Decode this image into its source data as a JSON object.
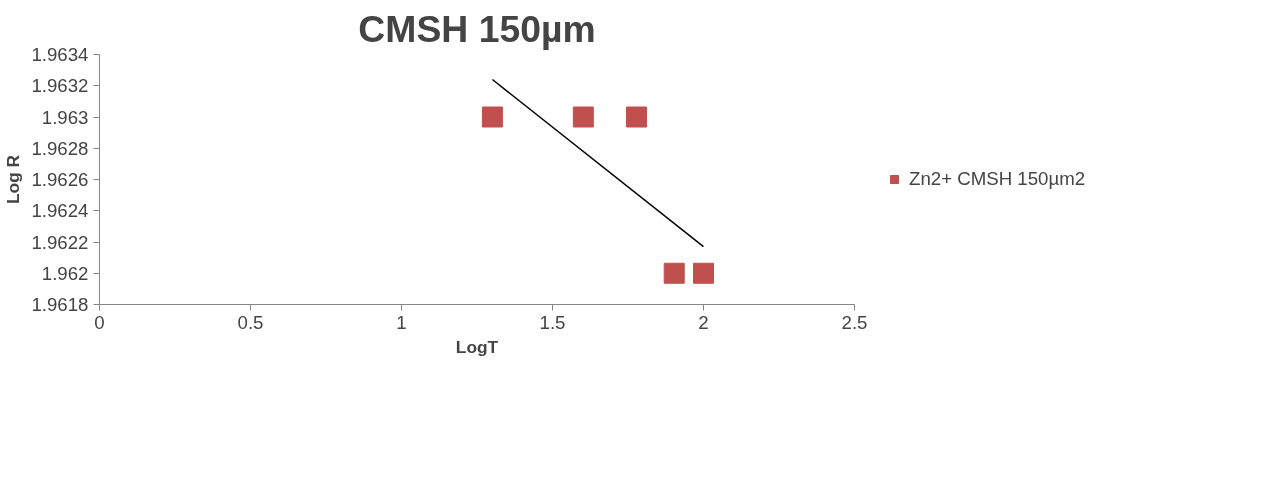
{
  "chart_data": {
    "type": "scatter",
    "title": "CMSH 150µm",
    "xlabel": "LogT",
    "ylabel": "Log R",
    "xlim": [
      0,
      2.5
    ],
    "xticks": [
      0,
      0.5,
      1,
      1.5,
      2,
      2.5
    ],
    "ylim": [
      1.9618,
      1.9634
    ],
    "yticks": [
      1.9618,
      1.962,
      1.9622,
      1.9624,
      1.9626,
      1.9628,
      1.963,
      1.9632,
      1.9634
    ],
    "grid": false,
    "legend": "right",
    "series": [
      {
        "name": "Zn2+ CMSH 150µm2",
        "color": "#c0504d",
        "marker": "square",
        "x": [
          1.301,
          1.602,
          1.778,
          1.903,
          2.0
        ],
        "values": [
          1.963,
          1.963,
          1.963,
          1.962,
          1.962
        ]
      },
      {
        "type": "line",
        "marker": "none",
        "color": "#000000",
        "x": [
          1.301,
          2.0
        ],
        "values": [
          1.96324,
          1.96217
        ]
      }
    ]
  }
}
